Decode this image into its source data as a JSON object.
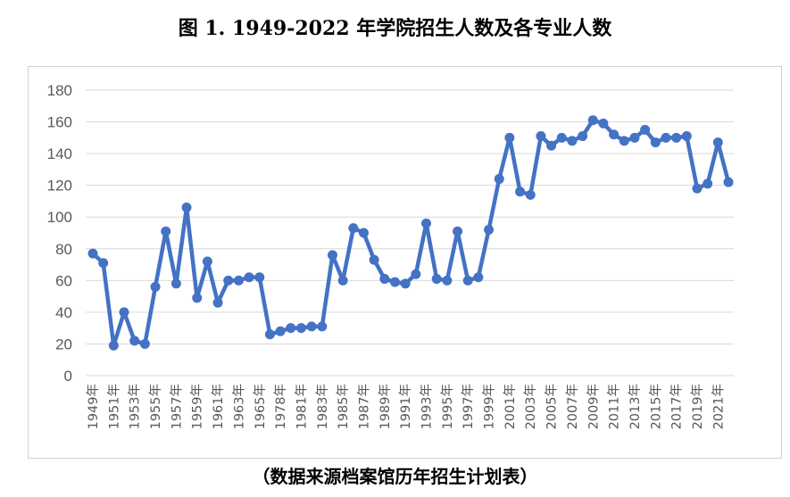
{
  "page": {
    "title": "图 1. 1949-2022 年学院招生人数及各专业人数",
    "caption": "（数据来源档案馆历年招生计划表）"
  },
  "colors": {
    "line": "#4472C4",
    "grid": "#d9d9d9",
    "tick": "#595959"
  },
  "chart_data": {
    "type": "line",
    "title": "",
    "xlabel": "",
    "ylabel": "",
    "ylim": [
      0,
      180
    ],
    "yticks": [
      0,
      20,
      40,
      60,
      80,
      100,
      120,
      140,
      160,
      180
    ],
    "grid": true,
    "legend": "none",
    "categories": [
      "1949年",
      "1950年",
      "1951年",
      "1952年",
      "1953年",
      "1954年",
      "1955年",
      "1956年",
      "1957年",
      "1958年",
      "1959年",
      "1960年",
      "1961年",
      "1962年",
      "1963年",
      "1964年",
      "1965年",
      "1977年",
      "1978年",
      "1980年",
      "1981年",
      "1982年",
      "1983年",
      "1984年",
      "1985年",
      "1986年",
      "1987年",
      "1988年",
      "1989年",
      "1990年",
      "1991年",
      "1992年",
      "1993年",
      "1994年",
      "1995年",
      "1996年",
      "1997年",
      "1998年",
      "1999年",
      "2000年",
      "2001年",
      "2002年",
      "2003年",
      "2004年",
      "2005年",
      "2006年",
      "2007年",
      "2008年",
      "2009年",
      "2010年",
      "2011年",
      "2012年",
      "2013年",
      "2014年",
      "2015年",
      "2016年",
      "2017年",
      "2018年",
      "2019年",
      "2020年",
      "2021年",
      "2022年"
    ],
    "tick_labels": [
      "1949年",
      "1951年",
      "1953年",
      "1955年",
      "1957年",
      "1959年",
      "1961年",
      "1963年",
      "1965年",
      "1978年",
      "1981年",
      "1983年",
      "1985年",
      "1987年",
      "1989年",
      "1991年",
      "1993年",
      "1995年",
      "1997年",
      "1999年",
      "2001年",
      "2003年",
      "2005年",
      "2007年",
      "2009年",
      "2011年",
      "2013年",
      "2015年",
      "2017年",
      "2019年",
      "2021年"
    ],
    "series": [
      {
        "values": [
          77,
          71,
          19,
          40,
          22,
          20,
          56,
          91,
          58,
          106,
          49,
          72,
          46,
          60,
          60,
          62,
          62,
          26,
          28,
          30,
          30,
          31,
          31,
          76,
          60,
          93,
          90,
          73,
          61,
          59,
          58,
          64,
          96,
          61,
          60,
          91,
          60,
          62,
          92,
          124,
          150,
          116,
          114,
          151,
          145,
          150,
          148,
          151,
          161,
          159,
          152,
          148,
          150,
          155,
          147,
          150,
          150,
          151,
          118,
          121,
          147,
          122
        ]
      }
    ]
  }
}
